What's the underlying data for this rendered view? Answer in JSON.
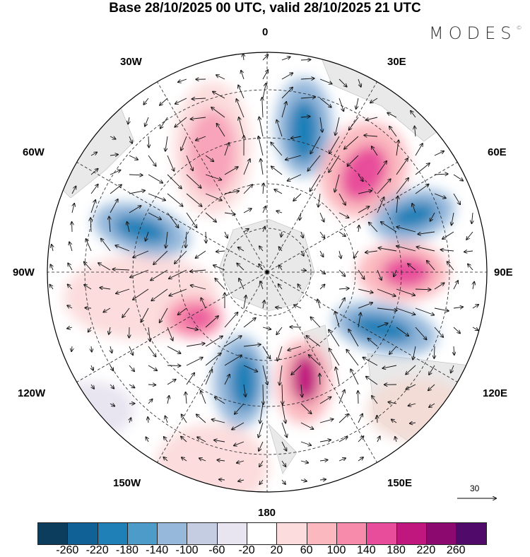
{
  "title": "Base 28/10/2025 00 UTC, valid 28/10/2025 21 UTC",
  "logo": "MODES",
  "logo_mark": "©",
  "longitude_labels": {
    "top": "0",
    "top_left": "30W",
    "top_right": "30E",
    "left_upper": "60W",
    "right_upper": "60E",
    "left": "90W",
    "right": "90E",
    "left_lower": "120W",
    "right_lower": "120E",
    "bottom_left": "150W",
    "bottom_right": "150E",
    "bottom": "180"
  },
  "vector_reference": "30",
  "colorbar": {
    "colors": [
      "#0d3d5c",
      "#0f6196",
      "#1f80b8",
      "#4d9bc8",
      "#95b8db",
      "#c5cde3",
      "#e8e4f0",
      "#ffffff",
      "#fcdcdc",
      "#fbb9bf",
      "#f78bab",
      "#e84d9b",
      "#c0177f",
      "#8c0a6f",
      "#4f0a6a"
    ],
    "labels": [
      "-260",
      "-220",
      "-180",
      "-140",
      "-100",
      "-60",
      "-20",
      "20",
      "60",
      "100",
      "140",
      "180",
      "220",
      "260"
    ]
  }
}
